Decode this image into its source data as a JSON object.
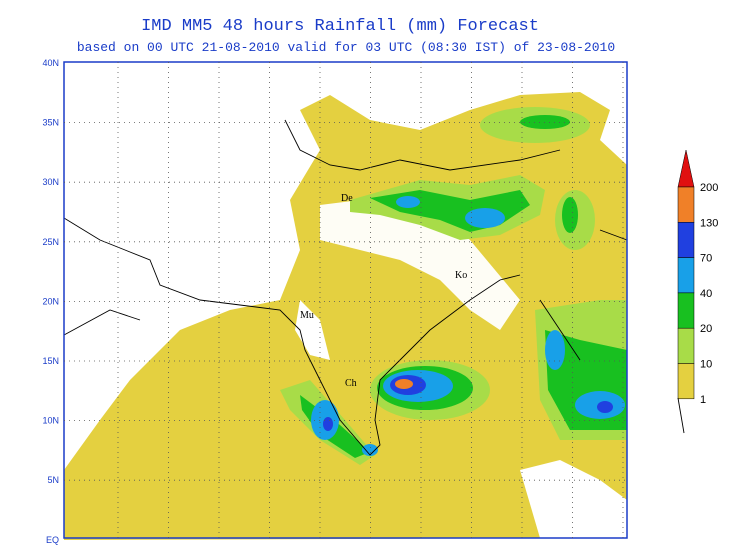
{
  "header": {
    "title": "IMD MM5 48 hours Rainfall (mm) Forecast",
    "subtitle": "based on 00 UTC  21-08-2010 valid for 03 UTC (08:30 IST) of 23-08-2010"
  },
  "map": {
    "lat_labels": [
      "40N",
      "35N",
      "30N",
      "25N",
      "20N",
      "15N",
      "10N",
      "5N",
      "EQ"
    ],
    "cities": [
      "De",
      "Mu",
      "Ch",
      "Ko"
    ]
  },
  "legend": {
    "levels": [
      {
        "value": 200,
        "color": "#e01010"
      },
      {
        "value": 130,
        "color": "#f08028"
      },
      {
        "value": 70,
        "color": "#2040e0"
      },
      {
        "value": 40,
        "color": "#18a0e8"
      },
      {
        "value": 20,
        "color": "#18c020"
      },
      {
        "value": 10,
        "color": "#a8dc48"
      },
      {
        "value": 1,
        "color": "#e4d040"
      }
    ]
  }
}
